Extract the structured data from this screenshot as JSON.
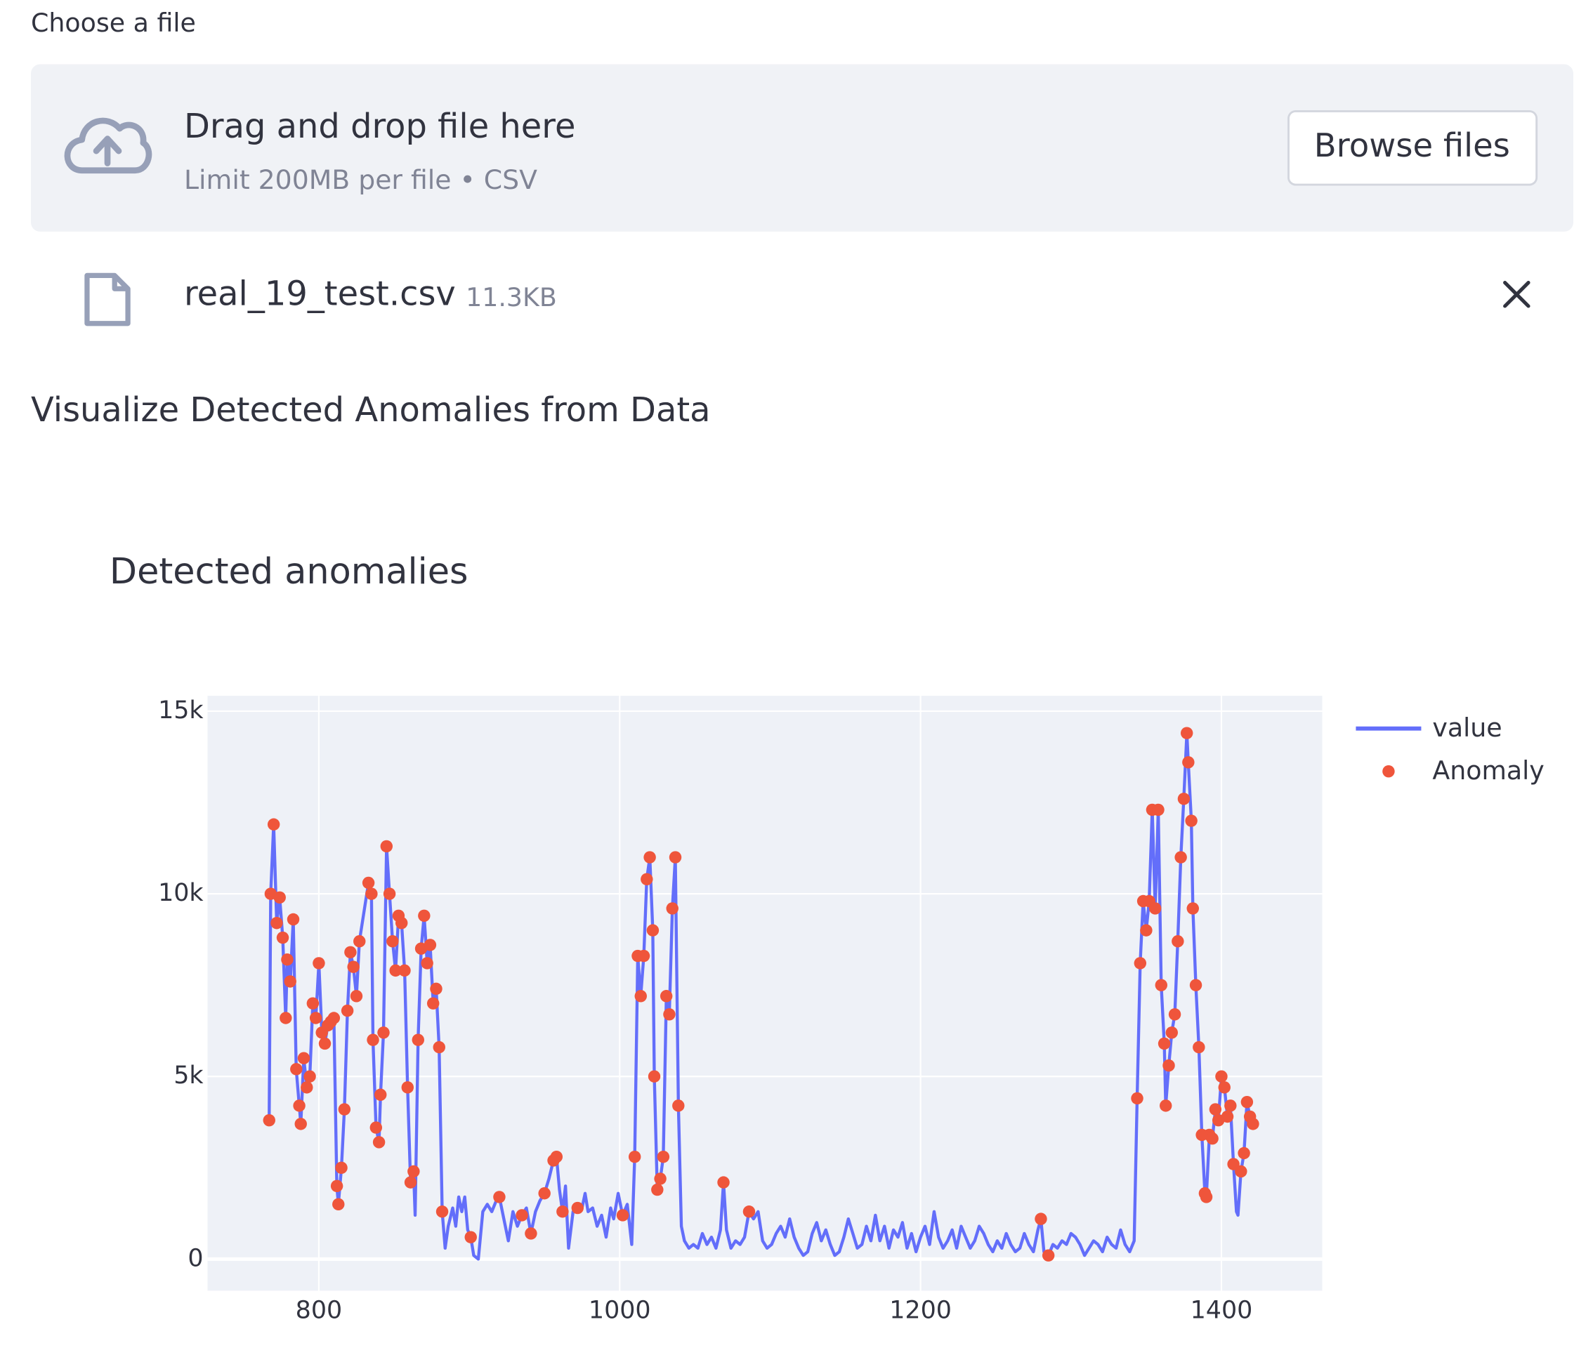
{
  "uploader": {
    "label": "Choose a file",
    "drop_text": "Drag and drop file here",
    "limit_text": "Limit 200MB per file • CSV",
    "button": "Browse files"
  },
  "file": {
    "name": "real_19_test.csv",
    "size": "11.3KB"
  },
  "section_title": "Visualize Detected Anomalies from Data",
  "chart_data": {
    "type": "line",
    "title": "Detected anomalies",
    "xlim": [
      726,
      1467
    ],
    "xticks": [
      800,
      1000,
      1200,
      1400
    ],
    "ylim": [
      -866,
      15419
    ],
    "yticks": [
      {
        "value": 0,
        "label": "0"
      },
      {
        "value": 5000,
        "label": "5k"
      },
      {
        "value": 10000,
        "label": "10k"
      },
      {
        "value": 15000,
        "label": "15k"
      }
    ],
    "grid": true,
    "series": [
      {
        "name": "value",
        "type": "line",
        "color": "#636efa",
        "x": [
          767,
          768,
          770,
          772,
          774,
          776,
          778,
          779,
          781,
          783,
          785,
          787,
          788,
          790,
          792,
          794,
          796,
          798,
          800,
          802,
          804,
          806,
          808,
          810,
          812,
          813,
          815,
          817,
          819,
          821,
          823,
          825,
          827,
          833,
          835,
          836,
          838,
          840,
          841,
          843,
          845,
          847,
          849,
          851,
          853,
          855,
          857,
          859,
          861,
          863,
          864,
          866,
          868,
          870,
          872,
          874,
          876,
          878,
          880,
          882,
          884,
          886,
          889,
          891,
          893,
          895,
          897,
          899,
          901,
          903,
          906,
          909,
          912,
          915,
          918,
          920,
          923,
          926,
          929,
          932,
          935,
          938,
          941,
          944,
          947,
          950,
          953,
          956,
          958,
          960,
          962,
          964,
          966,
          969,
          972,
          975,
          977,
          979,
          982,
          985,
          988,
          991,
          994,
          996,
          999,
          1002,
          1005,
          1008,
          1010,
          1012,
          1014,
          1016,
          1018,
          1020,
          1022,
          1023,
          1025,
          1027,
          1029,
          1031,
          1033,
          1035,
          1037,
          1039,
          1041,
          1043,
          1046,
          1049,
          1052,
          1055,
          1058,
          1061,
          1064,
          1067,
          1069,
          1071,
          1074,
          1077,
          1080,
          1083,
          1086,
          1089,
          1092,
          1095,
          1098,
          1101,
          1104,
          1107,
          1110,
          1113,
          1116,
          1119,
          1122,
          1125,
          1128,
          1131,
          1134,
          1137,
          1140,
          1143,
          1146,
          1149,
          1152,
          1155,
          1158,
          1161,
          1164,
          1167,
          1170,
          1173,
          1176,
          1179,
          1182,
          1185,
          1188,
          1191,
          1194,
          1197,
          1200,
          1203,
          1206,
          1209,
          1212,
          1215,
          1218,
          1221,
          1224,
          1227,
          1230,
          1233,
          1236,
          1239,
          1242,
          1245,
          1248,
          1251,
          1254,
          1257,
          1260,
          1263,
          1266,
          1269,
          1272,
          1275,
          1278,
          1280,
          1282,
          1285,
          1288,
          1291,
          1294,
          1297,
          1300,
          1303,
          1306,
          1309,
          1312,
          1315,
          1318,
          1321,
          1324,
          1327,
          1330,
          1333,
          1336,
          1339,
          1342,
          1344,
          1346,
          1348,
          1350,
          1352,
          1354,
          1356,
          1358,
          1360,
          1362,
          1363,
          1365,
          1367,
          1369,
          1371,
          1373,
          1375,
          1377,
          1378,
          1380,
          1381,
          1383,
          1385,
          1387,
          1389,
          1390,
          1392,
          1394,
          1396,
          1398,
          1400,
          1402,
          1404,
          1406,
          1408,
          1410,
          1411,
          1413,
          1415,
          1417,
          1419,
          1421
        ],
        "values": [
          3800,
          10000,
          11900,
          9200,
          9900,
          8800,
          6600,
          8200,
          7600,
          9300,
          5200,
          4200,
          3700,
          5500,
          4700,
          5000,
          7000,
          6600,
          8100,
          6200,
          5900,
          6400,
          6500,
          6600,
          2000,
          1500,
          2500,
          4100,
          6800,
          8400,
          8000,
          7200,
          8700,
          10300,
          10000,
          6000,
          3600,
          3200,
          4500,
          6200,
          11300,
          10000,
          8700,
          7900,
          9400,
          9200,
          7900,
          4700,
          2100,
          2400,
          1200,
          6000,
          8500,
          9400,
          8100,
          8600,
          7000,
          7400,
          5800,
          1300,
          300,
          900,
          1400,
          900,
          1700,
          1300,
          1700,
          800,
          600,
          100,
          0,
          1300,
          1500,
          1300,
          1600,
          1700,
          1100,
          500,
          1300,
          900,
          1200,
          1400,
          700,
          1300,
          1600,
          1800,
          2200,
          2700,
          2800,
          1900,
          1300,
          2000,
          300,
          1300,
          1400,
          1400,
          1800,
          1300,
          1400,
          900,
          1200,
          600,
          1400,
          1100,
          1800,
          1200,
          1500,
          400,
          2800,
          8300,
          7200,
          8300,
          10400,
          11000,
          9000,
          5000,
          1900,
          2200,
          2800,
          7200,
          6700,
          9600,
          11000,
          4200,
          900,
          500,
          300,
          400,
          300,
          700,
          400,
          600,
          300,
          800,
          2100,
          800,
          300,
          500,
          400,
          600,
          1300,
          1100,
          1300,
          500,
          300,
          400,
          700,
          900,
          600,
          1100,
          600,
          300,
          100,
          200,
          700,
          1000,
          500,
          800,
          400,
          100,
          200,
          600,
          1100,
          700,
          300,
          400,
          900,
          500,
          1200,
          500,
          900,
          300,
          800,
          600,
          1000,
          300,
          700,
          200,
          600,
          900,
          400,
          1300,
          600,
          300,
          500,
          800,
          300,
          900,
          600,
          300,
          500,
          900,
          700,
          400,
          200,
          500,
          300,
          700,
          400,
          200,
          300,
          700,
          400,
          200,
          800,
          1100,
          200,
          100,
          400,
          300,
          500,
          400,
          700,
          600,
          400,
          100,
          300,
          500,
          400,
          200,
          600,
          400,
          300,
          800,
          400,
          200,
          500,
          4400,
          8100,
          9800,
          9000,
          9800,
          12300,
          9600,
          12300,
          7500,
          5900,
          4200,
          5300,
          6200,
          6700,
          8700,
          11000,
          12600,
          14400,
          13600,
          12000,
          9600,
          7500,
          5800,
          3400,
          1800,
          1700,
          3400,
          3300,
          4100,
          3800,
          5000,
          4700,
          3900,
          4200,
          2600,
          1300,
          1200,
          2400,
          2900,
          4300,
          3900,
          3700
        ]
      },
      {
        "name": "Anomaly",
        "type": "scatter",
        "color": "#ef553b",
        "x": [
          767,
          768,
          770,
          772,
          774,
          776,
          778,
          779,
          781,
          783,
          785,
          787,
          788,
          790,
          792,
          794,
          796,
          798,
          800,
          802,
          804,
          806,
          808,
          810,
          812,
          813,
          815,
          817,
          819,
          821,
          823,
          825,
          827,
          833,
          835,
          836,
          838,
          840,
          841,
          843,
          845,
          847,
          849,
          851,
          853,
          855,
          857,
          859,
          861,
          863,
          866,
          868,
          870,
          872,
          874,
          876,
          878,
          880,
          882,
          901,
          920,
          935,
          941,
          950,
          956,
          958,
          962,
          972,
          1002,
          1010,
          1012,
          1014,
          1016,
          1018,
          1020,
          1022,
          1023,
          1025,
          1027,
          1029,
          1031,
          1033,
          1035,
          1037,
          1039,
          1069,
          1086,
          1280,
          1285,
          1344,
          1346,
          1348,
          1350,
          1352,
          1354,
          1356,
          1358,
          1360,
          1362,
          1363,
          1365,
          1367,
          1369,
          1371,
          1373,
          1375,
          1377,
          1378,
          1380,
          1381,
          1383,
          1385,
          1387,
          1389,
          1390,
          1392,
          1394,
          1396,
          1398,
          1400,
          1402,
          1404,
          1406,
          1408,
          1413,
          1415,
          1417,
          1419,
          1421
        ],
        "values": [
          3800,
          10000,
          11900,
          9200,
          9900,
          8800,
          6600,
          8200,
          7600,
          9300,
          5200,
          4200,
          3700,
          5500,
          4700,
          5000,
          7000,
          6600,
          8100,
          6200,
          5900,
          6400,
          6500,
          6600,
          2000,
          1500,
          2500,
          4100,
          6800,
          8400,
          8000,
          7200,
          8700,
          10300,
          10000,
          6000,
          3600,
          3200,
          4500,
          6200,
          11300,
          10000,
          8700,
          7900,
          9400,
          9200,
          7900,
          4700,
          2100,
          2400,
          6000,
          8500,
          9400,
          8100,
          8600,
          7000,
          7400,
          5800,
          1300,
          600,
          1700,
          1200,
          700,
          1800,
          2700,
          2800,
          1300,
          1400,
          1200,
          2800,
          8300,
          7200,
          8300,
          10400,
          11000,
          9000,
          5000,
          1900,
          2200,
          2800,
          7200,
          6700,
          9600,
          11000,
          4200,
          2100,
          1300,
          1100,
          100,
          4400,
          8100,
          9800,
          9000,
          9800,
          12300,
          9600,
          12300,
          7500,
          5900,
          4200,
          5300,
          6200,
          6700,
          8700,
          11000,
          12600,
          14400,
          13600,
          12000,
          9600,
          7500,
          5800,
          3400,
          1800,
          1700,
          3400,
          3300,
          4100,
          3800,
          5000,
          4700,
          3900,
          4200,
          2600,
          2400,
          2900,
          4300,
          3900,
          3700
        ]
      }
    ]
  }
}
